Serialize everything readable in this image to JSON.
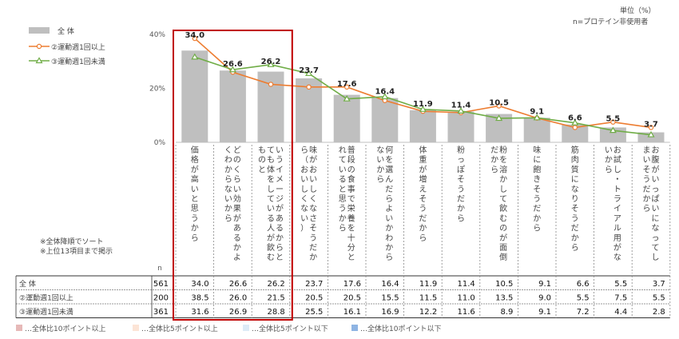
{
  "unit_note": "単位（%）",
  "base_note": "n=プロテイン非使用者",
  "sort_notes": [
    "※全体降順でソート",
    "※上位13項目まで掲示"
  ],
  "n_header": "n",
  "colors": {
    "bar": "#bfbfbf",
    "line1": "#ed7d31",
    "line2": "#70ad47",
    "highlight": "#c00000"
  },
  "legend": [
    "全 体",
    "②運動週1回以上",
    "③運動週1回未満"
  ],
  "footnotes": [
    "…全体比10ポイント以上",
    "…全体比5ポイント以上",
    "…全体比5ポイント以下",
    "…全体比10ポイント以下"
  ],
  "chart_data": {
    "type": "bar",
    "ylim": [
      0,
      40
    ],
    "yticks": [
      "0%",
      "20%",
      "40%"
    ],
    "categories": [
      "価格が高いと思うから",
      "どのくらい効果があるかよくわからないから",
      "いうイメージがあるからとても体をしている人が飲むものと",
      "味がおいしくなさそうだから（おいしくない）",
      "普段の食事で栄養を十分とれていると思うから",
      "何を選んだらよいかわからないから",
      "体重が増えそうだから",
      "粉っぽそうだから",
      "粉を溶かして飲むのが面倒だから",
      "味に飽きそうだから",
      "筋肉質になりそうだから",
      "お試し・トライアル用がないから",
      "お腹がいっぱいになってしまいそうだから"
    ],
    "series": [
      {
        "name": "全 体",
        "n": "561",
        "values": [
          34.0,
          26.6,
          26.2,
          23.7,
          17.6,
          16.4,
          11.9,
          11.4,
          10.5,
          9.1,
          6.6,
          5.5,
          3.7
        ]
      },
      {
        "name": "②運動週1回以上",
        "n": "200",
        "values": [
          38.5,
          26.0,
          21.5,
          20.5,
          20.5,
          15.5,
          11.5,
          11.0,
          13.5,
          9.0,
          5.5,
          7.5,
          5.5
        ]
      },
      {
        "name": "③運動週1回未満",
        "n": "361",
        "values": [
          31.6,
          26.9,
          28.8,
          25.5,
          16.1,
          16.9,
          12.2,
          11.6,
          8.9,
          9.1,
          7.2,
          4.4,
          2.8
        ]
      }
    ]
  }
}
